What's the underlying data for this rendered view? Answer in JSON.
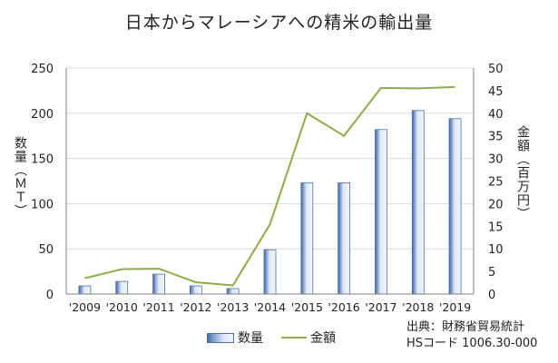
{
  "chart_data": {
    "type": "bar",
    "title": "日本からマレーシアへの精米の輸出量",
    "categories": [
      "'2009",
      "'2010",
      "'2011",
      "'2012",
      "'2013",
      "'2014",
      "'2015",
      "'2016",
      "'2017",
      "'2018",
      "'2019"
    ],
    "series": [
      {
        "name": "数量",
        "type": "bar",
        "axis": "left",
        "values": [
          9,
          14,
          22,
          9,
          6,
          49,
          123,
          123,
          182,
          203,
          194
        ]
      },
      {
        "name": "金額",
        "type": "line",
        "axis": "right",
        "values": [
          3.5,
          5.5,
          5.6,
          2.6,
          1.9,
          15.4,
          40.0,
          35.0,
          45.6,
          45.5,
          45.8
        ]
      }
    ],
    "ylabel_left": "数量（ＭＴ）",
    "ylabel_right": "金額（百万円）",
    "ylim_left": [
      0,
      250
    ],
    "ylim_right": [
      0,
      50
    ],
    "yticks_left": [
      "0",
      "50",
      "100",
      "150",
      "200",
      "250"
    ],
    "yticks_right": [
      "0",
      "5",
      "10",
      "15",
      "20",
      "25",
      "30",
      "35",
      "40",
      "45",
      "50"
    ],
    "grid": true,
    "legend": "bottom",
    "colors": {
      "bar": "#4a6fb0",
      "line": "#8cac45",
      "grid": "#d9d9d9"
    }
  },
  "source": {
    "line1": "出典：財務省貿易統計",
    "line2": "HSコード 1006.30-000"
  }
}
